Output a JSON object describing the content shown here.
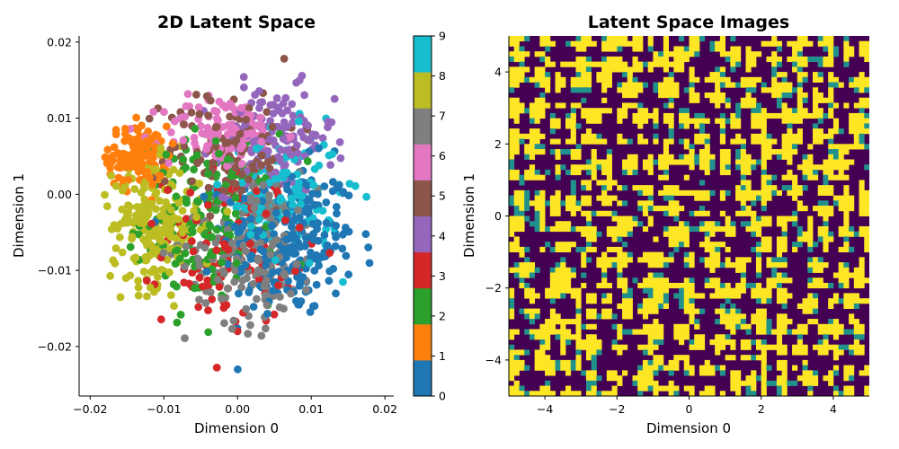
{
  "chart_data": [
    {
      "type": "scatter",
      "title": "2D Latent Space",
      "xlabel": "Dimension 0",
      "ylabel": "Dimension 1",
      "xlim": [
        -0.0215,
        0.0212
      ],
      "ylim": [
        -0.0265,
        0.0208
      ],
      "xticks": [
        -0.02,
        -0.01,
        0.0,
        0.01,
        0.02
      ],
      "xtick_labels": [
        "−0.02",
        "−0.01",
        "0.00",
        "0.01",
        "0.02"
      ],
      "yticks": [
        -0.02,
        -0.01,
        0.0,
        0.01,
        0.02
      ],
      "ytick_labels": [
        "−0.02",
        "−0.01",
        "0.00",
        "0.01",
        "0.02"
      ],
      "grid": false,
      "colormap": "tab10",
      "class_colors": [
        "#1f77b4",
        "#ff7f0e",
        "#2ca02c",
        "#d62728",
        "#9467bd",
        "#8c564b",
        "#e377c2",
        "#7f7f7f",
        "#bcbd22",
        "#17becf"
      ],
      "clusters": [
        {
          "label": 0,
          "cx": 0.007,
          "cy": -0.006,
          "sx": 0.0045,
          "sy": 0.005,
          "n": 260
        },
        {
          "label": 1,
          "cx": -0.0135,
          "cy": 0.005,
          "sx": 0.002,
          "sy": 0.002,
          "n": 130
        },
        {
          "label": 2,
          "cx": -0.004,
          "cy": -0.003,
          "sx": 0.0045,
          "sy": 0.0055,
          "n": 160
        },
        {
          "label": 3,
          "cx": -0.001,
          "cy": -0.007,
          "sx": 0.0045,
          "sy": 0.005,
          "n": 120
        },
        {
          "label": 4,
          "cx": 0.005,
          "cy": 0.007,
          "sx": 0.004,
          "sy": 0.0035,
          "n": 140
        },
        {
          "label": 5,
          "cx": -0.0005,
          "cy": 0.006,
          "sx": 0.0045,
          "sy": 0.004,
          "n": 120
        },
        {
          "label": 6,
          "cx": -0.002,
          "cy": 0.008,
          "sx": 0.004,
          "sy": 0.0025,
          "n": 120
        },
        {
          "label": 7,
          "cx": 0.002,
          "cy": -0.007,
          "sx": 0.0045,
          "sy": 0.005,
          "n": 180
        },
        {
          "label": 8,
          "cx": -0.011,
          "cy": -0.004,
          "sx": 0.003,
          "sy": 0.004,
          "n": 220
        },
        {
          "label": 9,
          "cx": 0.006,
          "cy": 0.0,
          "sx": 0.004,
          "sy": 0.004,
          "n": 140
        }
      ],
      "colorbar": {
        "range": [
          0,
          9
        ],
        "ticks": [
          "0",
          "1",
          "2",
          "3",
          "4",
          "5",
          "6",
          "7",
          "8",
          "9"
        ]
      }
    },
    {
      "type": "heatmap",
      "title": "Latent Space Images",
      "xlabel": "Dimension 0",
      "ylabel": "Dimension 1",
      "xlim": [
        -5,
        5
      ],
      "ylim": [
        -5,
        5
      ],
      "xticks": [
        -4,
        -2,
        0,
        2,
        4
      ],
      "xtick_labels": [
        "−4",
        "−2",
        "0",
        "2",
        "4"
      ],
      "yticks": [
        -4,
        -2,
        0,
        2,
        4
      ],
      "ytick_labels": [
        "−4",
        "−2",
        "0",
        "2",
        "4"
      ],
      "colormap": "viridis",
      "colors": {
        "low": "#440154",
        "mid": "#21918c",
        "high": "#fde725"
      },
      "tile_grid": [
        10,
        10
      ]
    }
  ]
}
